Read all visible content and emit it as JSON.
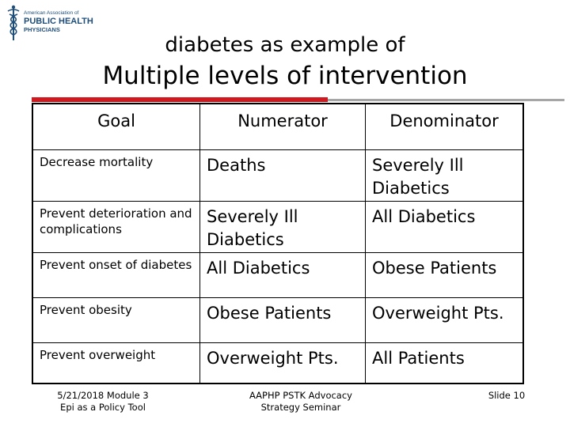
{
  "logo": {
    "line1": "American Association of",
    "line2": "PUBLIC HEALTH",
    "line3": "PHYSICIANS",
    "icon": "caduceus-icon"
  },
  "subtitle": "diabetes as example of",
  "title": "Multiple levels of intervention",
  "colors": {
    "accent": "#d0191f",
    "rule": "#a6a6a6",
    "logo": "#1f4e79"
  },
  "table": {
    "headers": [
      "Goal",
      "Numerator",
      "Denominator"
    ],
    "rows": [
      {
        "goal": "Decrease mortality",
        "numerator": "Deaths",
        "denominator": "Severely Ill Diabetics"
      },
      {
        "goal": "Prevent deterioration and complications",
        "numerator": "Severely Ill Diabetics",
        "denominator": "All Diabetics"
      },
      {
        "goal": "Prevent onset of diabetes",
        "numerator": "All Diabetics",
        "denominator": "Obese Patients"
      },
      {
        "goal": "Prevent obesity",
        "numerator": "Obese Patients",
        "denominator": "Overweight Pts."
      },
      {
        "goal": "Prevent overweight",
        "numerator": "Overweight Pts.",
        "denominator": "All Patients"
      }
    ]
  },
  "footer": {
    "left_line1": "5/21/2018 Module 3",
    "left_line2": "Epi as a Policy Tool",
    "center_line1": "AAPHP PSTK Advocacy",
    "center_line2": "Strategy Seminar",
    "right": "Slide 10"
  }
}
